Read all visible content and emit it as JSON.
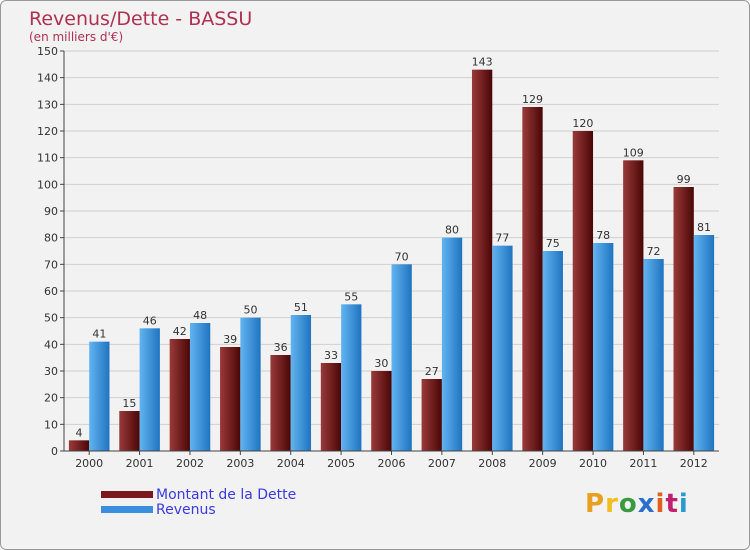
{
  "chart_data": {
    "type": "bar",
    "title": "Revenus/Dette - BASSU",
    "subtitle": "(en milliers d'€)",
    "categories": [
      "2000",
      "2001",
      "2002",
      "2003",
      "2004",
      "2005",
      "2006",
      "2007",
      "2008",
      "2009",
      "2010",
      "2011",
      "2012"
    ],
    "series": [
      {
        "name": "Montant de la Dette",
        "color": "#7b1a1c",
        "values": [
          4,
          15,
          42,
          39,
          36,
          33,
          30,
          27,
          143,
          129,
          120,
          109,
          99
        ]
      },
      {
        "name": "Revenus",
        "color": "#3a8fdc",
        "values": [
          41,
          46,
          48,
          50,
          51,
          55,
          70,
          80,
          77,
          75,
          78,
          72,
          81
        ]
      }
    ],
    "ylim": [
      0,
      150
    ],
    "yticks": [
      0,
      10,
      20,
      30,
      40,
      50,
      60,
      70,
      80,
      90,
      100,
      110,
      120,
      130,
      140,
      150
    ],
    "grid": true,
    "legend": "bottom-left"
  },
  "colors": {
    "title": "#b03050",
    "axis": "#444444",
    "debt_light": "#9a3a3a",
    "debt_dark": "#4a0606",
    "rev_light": "#62b4f0",
    "rev_dark": "#1f74c0"
  },
  "legend": {
    "debt_label": "Montant de la Dette",
    "revenue_label": "Revenus"
  },
  "logo": {
    "letters": [
      "P",
      "r",
      "o",
      "x",
      "i",
      "t",
      "i"
    ],
    "colors": [
      "#e8a020",
      "#f0c020",
      "#3a9a40",
      "#2a6fd0",
      "#e06020",
      "#c02070",
      "#2a9ad0"
    ]
  }
}
